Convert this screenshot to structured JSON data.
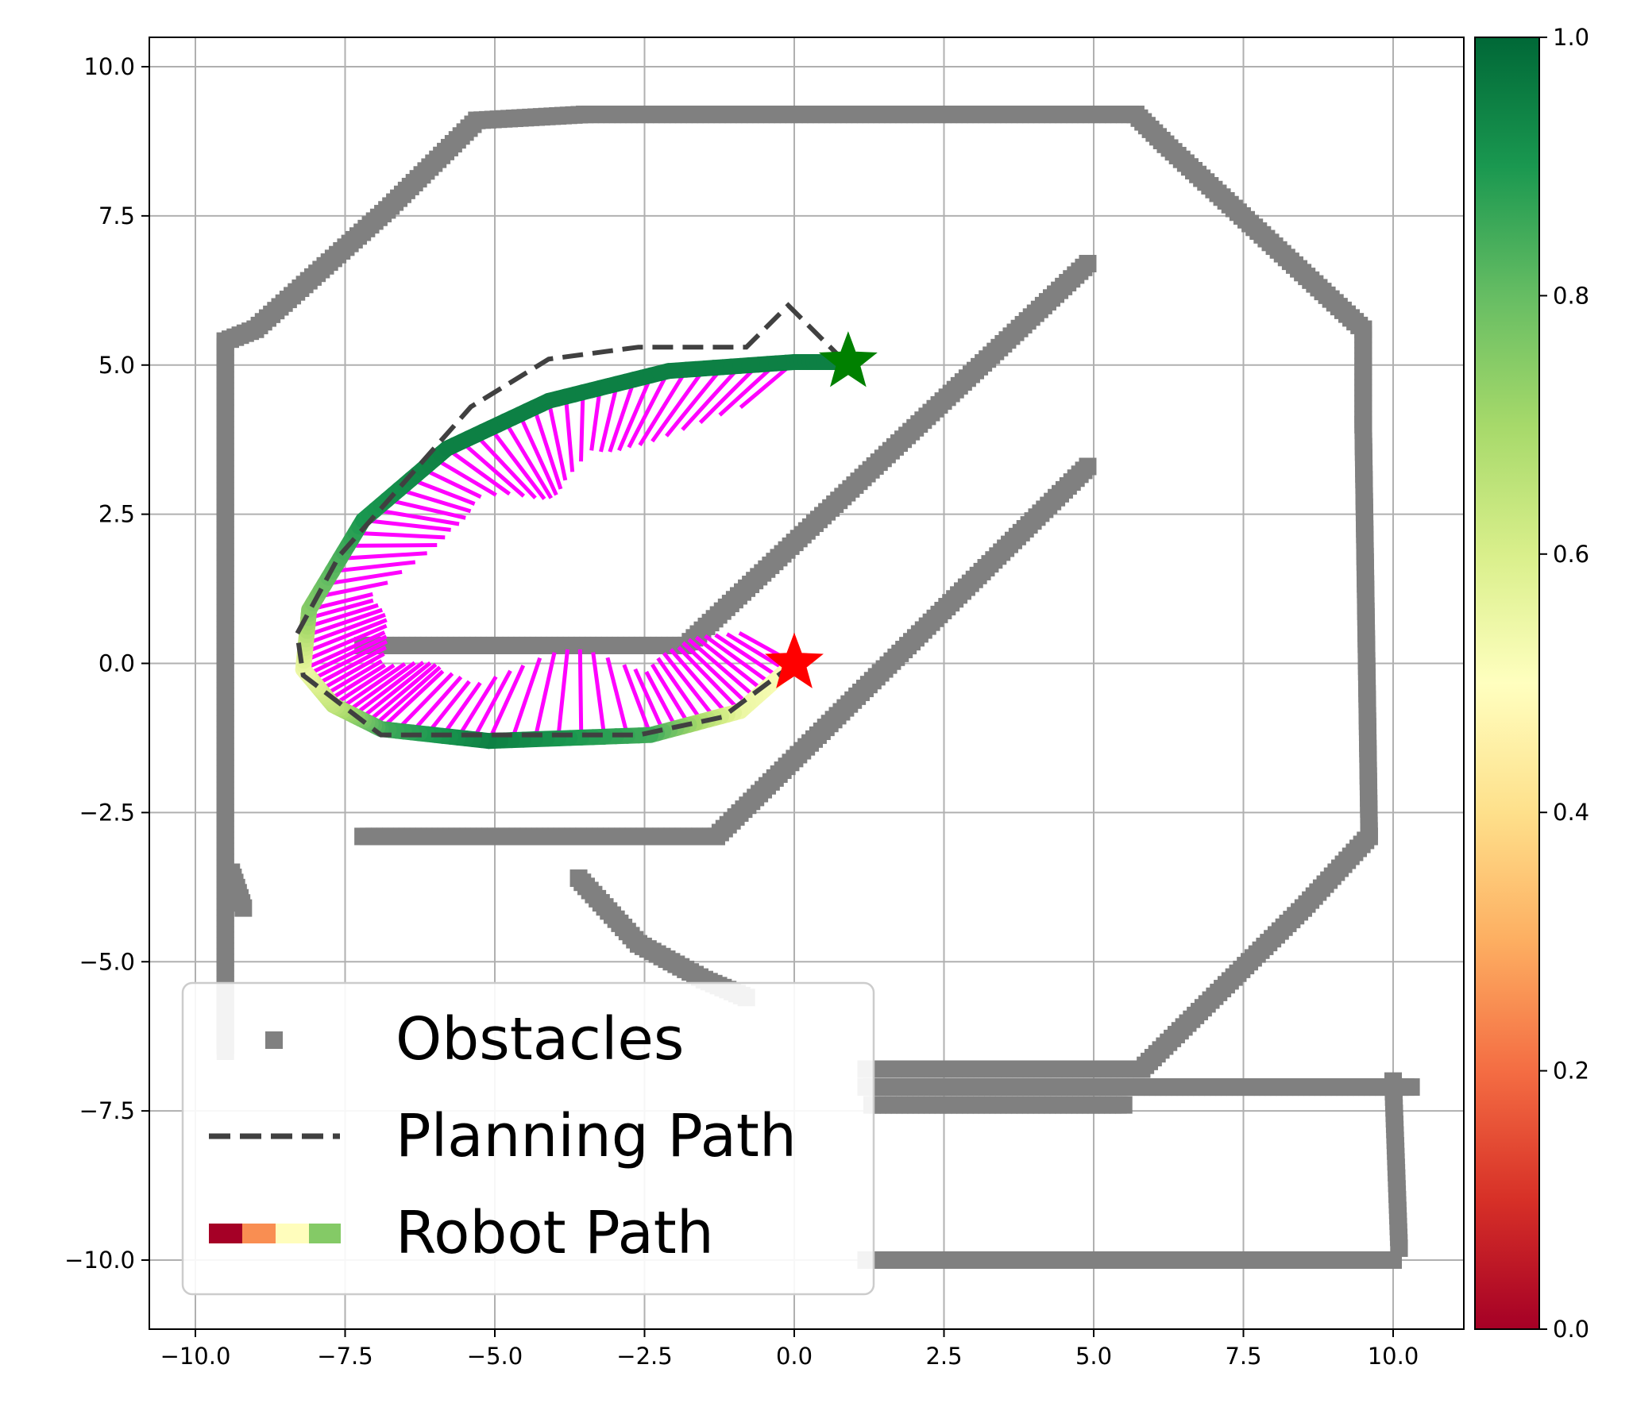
{
  "chart_data": {
    "type": "scatter",
    "title": "",
    "xlabel": "",
    "ylabel": "",
    "xlim": [
      -10.8,
      11.2
    ],
    "ylim": [
      -11.2,
      10.5
    ],
    "xticks": [
      -10.0,
      -7.5,
      -5.0,
      -2.5,
      0.0,
      2.5,
      5.0,
      7.5,
      10.0
    ],
    "xtick_labels": [
      "−10.0",
      "−7.5",
      "−5.0",
      "−2.5",
      "0.0",
      "2.5",
      "5.0",
      "7.5",
      "10.0"
    ],
    "yticks": [
      10.0,
      7.5,
      5.0,
      2.5,
      0.0,
      -2.5,
      -5.0,
      -7.5,
      -10.0
    ],
    "ytick_labels": [
      "10.0",
      "7.5",
      "5.0",
      "2.5",
      "0.0",
      "−2.5",
      "−5.0",
      "−7.5",
      "−10.0"
    ],
    "grid": true,
    "legend_position": "bottom-left",
    "colorbar": {
      "colormap": "RdYlGn",
      "range": [
        0.0,
        1.0
      ],
      "ticks": [
        0.0,
        0.2,
        0.4,
        0.6,
        0.8,
        1.0
      ],
      "tick_labels": [
        "0.0",
        "0.2",
        "0.4",
        "0.6",
        "0.8",
        "1.0"
      ]
    },
    "series": [
      {
        "name": "Obstacles",
        "marker": "square",
        "color": "#808080",
        "polylines": [
          [
            [
              -9.5,
              -6.5
            ],
            [
              -9.5,
              5.4
            ],
            [
              -9.0,
              5.6
            ],
            [
              -6.8,
              7.6
            ],
            [
              -5.3,
              9.1
            ],
            [
              -3.5,
              9.2
            ],
            [
              5.7,
              9.2
            ],
            [
              6.2,
              8.7
            ],
            [
              9.5,
              5.6
            ],
            [
              9.5,
              4.0
            ],
            [
              9.6,
              -2.9
            ],
            [
              8.5,
              -4.1
            ],
            [
              5.8,
              -6.8
            ],
            [
              1.2,
              -6.8
            ]
          ],
          [
            [
              1.2,
              -7.1
            ],
            [
              10.3,
              -7.1
            ]
          ],
          [
            [
              1.3,
              -7.4
            ],
            [
              5.5,
              -7.4
            ]
          ],
          [
            [
              10.0,
              -7.0
            ],
            [
              10.1,
              -9.8
            ]
          ],
          [
            [
              10.0,
              -10.0
            ],
            [
              1.2,
              -10.0
            ]
          ],
          [
            [
              -7.2,
              0.3
            ],
            [
              -1.8,
              0.3
            ],
            [
              4.9,
              6.7
            ]
          ],
          [
            [
              -7.2,
              -2.9
            ],
            [
              -1.3,
              -2.9
            ],
            [
              4.9,
              3.3
            ]
          ],
          [
            [
              -3.6,
              -3.6
            ],
            [
              -2.6,
              -4.7
            ],
            [
              -1.5,
              -5.3
            ],
            [
              -0.8,
              -5.6
            ]
          ],
          [
            [
              -9.4,
              -3.5
            ],
            [
              -9.2,
              -4.1
            ]
          ]
        ]
      },
      {
        "name": "Planning Path",
        "color": "#404040",
        "style": "dashed",
        "points": [
          [
            0.0,
            0.0
          ],
          [
            -1.2,
            -0.9
          ],
          [
            -2.6,
            -1.2
          ],
          [
            -6.9,
            -1.2
          ],
          [
            -8.2,
            -0.2
          ],
          [
            -8.3,
            0.5
          ],
          [
            -7.6,
            1.8
          ],
          [
            -5.4,
            4.3
          ],
          [
            -4.1,
            5.1
          ],
          [
            -2.6,
            5.3
          ],
          [
            -0.8,
            5.3
          ],
          [
            -0.1,
            6.0
          ],
          [
            0.8,
            5.1
          ]
        ]
      },
      {
        "name": "Robot Path",
        "colormap": "RdYlGn",
        "points": [
          [
            0.0,
            0.0
          ],
          [
            -0.9,
            -0.8
          ],
          [
            -2.4,
            -1.2
          ],
          [
            -5.1,
            -1.3
          ],
          [
            -6.9,
            -1.1
          ],
          [
            -7.7,
            -0.7
          ],
          [
            -8.2,
            -0.1
          ],
          [
            -8.1,
            0.9
          ],
          [
            -7.2,
            2.4
          ],
          [
            -5.8,
            3.6
          ],
          [
            -4.1,
            4.4
          ],
          [
            -2.1,
            4.9
          ],
          [
            0.0,
            5.05
          ],
          [
            0.9,
            5.05
          ]
        ],
        "colorbar_values": [
          0.5,
          0.55,
          0.85,
          0.95,
          0.85,
          0.65,
          0.55,
          0.75,
          0.9,
          0.95,
          0.95,
          0.95,
          0.95,
          0.95
        ]
      }
    ],
    "start_marker": {
      "x": 0.0,
      "y": 0.0,
      "color": "#ff0000"
    },
    "goal_marker": {
      "x": 0.9,
      "y": 5.05,
      "color": "#008000"
    },
    "arrow_color": "#ff00ff",
    "legend_entries": [
      "Obstacles",
      "Planning Path",
      "Robot Path"
    ]
  }
}
